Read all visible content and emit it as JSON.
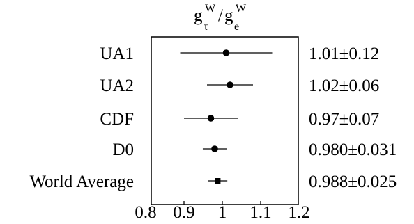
{
  "chart_data": {
    "type": "scatter",
    "title_parts": {
      "num_base": "g",
      "num_sub": "τ",
      "num_sup": "W",
      "slash": "/",
      "den_base": "g",
      "den_sub": "e",
      "den_sup": "W"
    },
    "xlabel": "",
    "ylabel": "",
    "xlim": [
      0.8,
      1.2
    ],
    "x_ticks": [
      0.8,
      0.9,
      1.0,
      1.1,
      1.2
    ],
    "x_tick_labels": [
      "0.8",
      "0.9",
      "1",
      "1.1",
      "1.2"
    ],
    "grid": false,
    "legend": "none",
    "series": [
      {
        "label": "UA1",
        "value": 1.01,
        "error": 0.12,
        "value_label": "1.01±0.12",
        "marker": "circle"
      },
      {
        "label": "UA2",
        "value": 1.02,
        "error": 0.06,
        "value_label": "1.02±0.06",
        "marker": "circle"
      },
      {
        "label": "CDF",
        "value": 0.97,
        "error": 0.07,
        "value_label": "0.97±0.07",
        "marker": "circle"
      },
      {
        "label": "D0",
        "value": 0.98,
        "error": 0.031,
        "value_label": "0.980±0.031",
        "marker": "circle"
      },
      {
        "label": "World Average",
        "value": 0.988,
        "error": 0.025,
        "value_label": "0.988±0.025",
        "marker": "square"
      }
    ],
    "colors": {
      "ink": "#000000",
      "background": "#ffffff"
    }
  }
}
